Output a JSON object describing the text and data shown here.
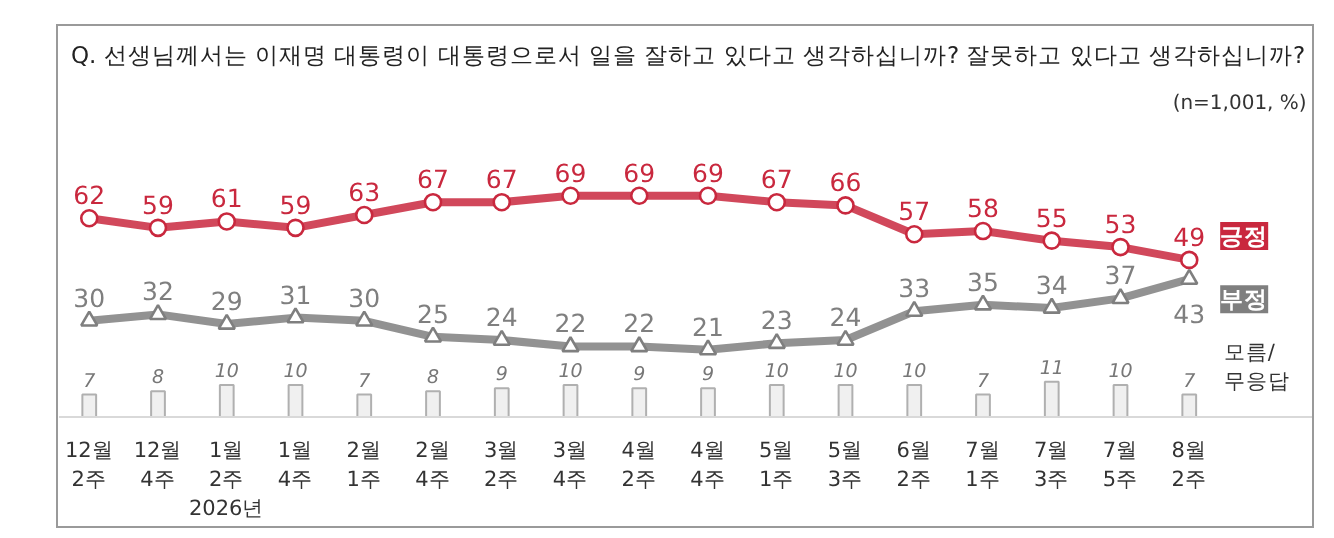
{
  "chart_data": {
    "type": "line",
    "title": "Q. 선생님께서는 이재명 대통령이 대통령으로서 일을 잘하고 있다고 생각하십니까? 잘못하고 있다고 생각하십니까?",
    "subtitle": "(n=1,001,  %)",
    "categories": [
      "12월 2주",
      "12월 4주",
      "1월 2주",
      "1월 4주",
      "2월 1주",
      "2월 4주",
      "3월 2주",
      "3월 4주",
      "4월 2주",
      "4월 4주",
      "5월 1주",
      "5월 3주",
      "6월 2주",
      "7월 1주",
      "7월 3주",
      "7월 5주",
      "8월 2주"
    ],
    "series": [
      {
        "name": "긍정",
        "marker": "circle",
        "color": "#c9283e",
        "values": [
          62,
          59,
          61,
          59,
          63,
          67,
          67,
          69,
          69,
          69,
          67,
          66,
          57,
          58,
          55,
          53,
          49
        ]
      },
      {
        "name": "부정",
        "marker": "triangle",
        "color": "#7f7f7f",
        "values": [
          30,
          32,
          29,
          31,
          30,
          25,
          24,
          22,
          22,
          21,
          23,
          24,
          33,
          35,
          34,
          37,
          43
        ]
      },
      {
        "name": "모름/무응답",
        "type": "bar",
        "color": "#f0f0f0",
        "values": [
          7,
          8,
          10,
          10,
          7,
          8,
          9,
          10,
          9,
          9,
          10,
          10,
          10,
          7,
          11,
          10,
          7
        ]
      }
    ],
    "data_labels": true,
    "annotations": [
      "2026년"
    ]
  }
}
